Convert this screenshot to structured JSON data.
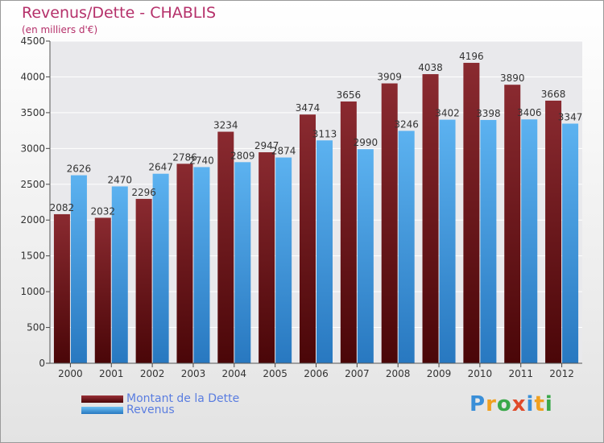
{
  "header": {
    "title": "Revenus/Dette - CHABLIS",
    "subtitle": "(en milliers d'€)"
  },
  "chart_data": {
    "type": "bar",
    "categories": [
      "2000",
      "2001",
      "2002",
      "2003",
      "2004",
      "2005",
      "2006",
      "2007",
      "2008",
      "2009",
      "2010",
      "2011",
      "2012"
    ],
    "series": [
      {
        "name": "Montant de la Dette",
        "color": "#7a1a20",
        "values": [
          2082,
          2032,
          2296,
          2786,
          3234,
          2947,
          3474,
          3656,
          3909,
          4038,
          4196,
          3890,
          3668
        ]
      },
      {
        "name": "Revenus",
        "color": "#4aa3e8",
        "values": [
          2626,
          2470,
          2647,
          2740,
          2809,
          2874,
          3113,
          2990,
          3246,
          3402,
          3398,
          3406,
          3347
        ]
      }
    ],
    "data_labels": [
      [
        "2082",
        "2032",
        "2296",
        "2786",
        "3234",
        "2947",
        "3474",
        "3656",
        "3909",
        "4038",
        "4196",
        "3890",
        "3668"
      ],
      [
        "2626",
        "2470",
        "2647",
        "2740",
        "2809",
        "2874",
        "3113",
        "2990",
        "3246",
        "3402",
        "3398",
        "3406",
        "3347"
      ]
    ],
    "ylim": [
      0,
      4500
    ],
    "yticks": [
      0,
      500,
      1000,
      1500,
      2000,
      2500,
      3000,
      3500,
      4000,
      4500
    ],
    "grid": true,
    "legend_position": "bottom-left"
  },
  "legend": [
    {
      "label": "Montant de la Dette",
      "color": "#7a1a20"
    },
    {
      "label": "Revenus",
      "color": "#4aa3e8"
    }
  ],
  "logo": {
    "letters": [
      "P",
      "r",
      "o",
      "x",
      "i",
      "t",
      "i"
    ],
    "colors": [
      "#3a8fd8",
      "#f0a020",
      "#3aa84a",
      "#e04a2a",
      "#3a8fd8",
      "#f0a020",
      "#3aa84a"
    ]
  }
}
